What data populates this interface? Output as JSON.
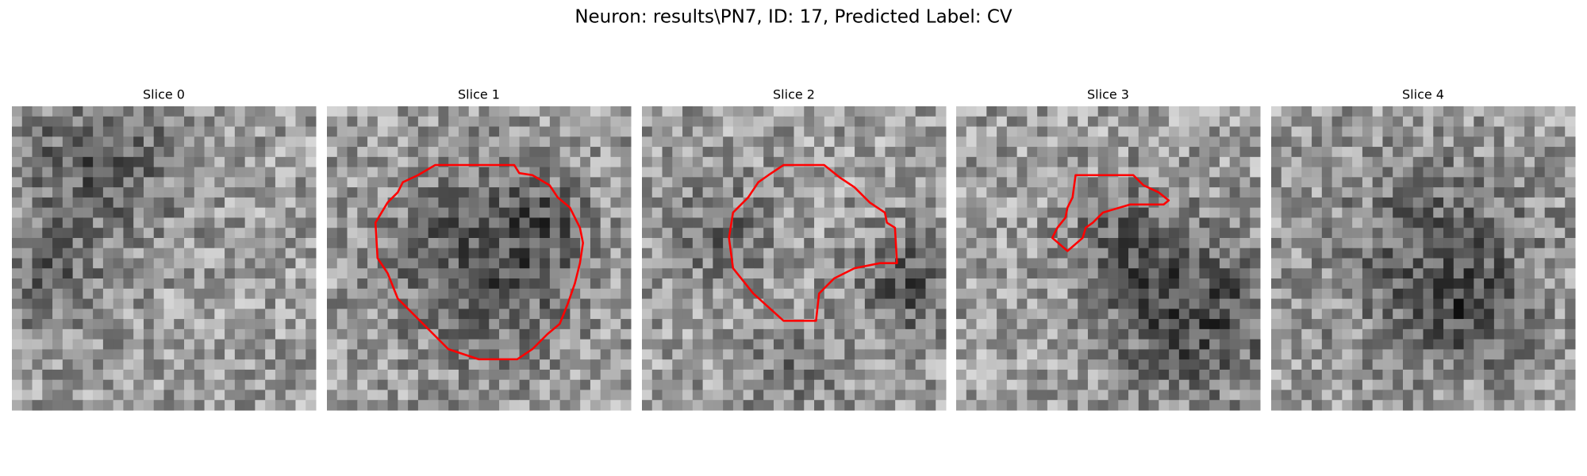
{
  "title": "Neuron: results\\PN7, ID: 17, Predicted Label: CV",
  "panels": [
    {
      "title": "Slice 0"
    },
    {
      "title": "Slice 1"
    },
    {
      "title": "Slice 2"
    },
    {
      "title": "Slice 3"
    },
    {
      "title": "Slice 4"
    }
  ]
}
